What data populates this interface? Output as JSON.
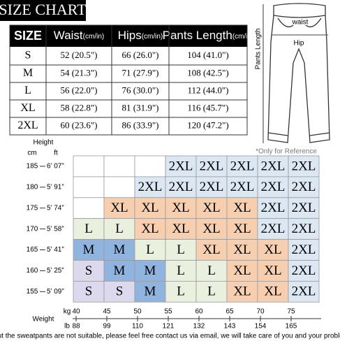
{
  "title": "SIZE CHART",
  "table": {
    "header": [
      {
        "label": "SIZE"
      },
      {
        "label": "Waist",
        "unit": "(cm/in)"
      },
      {
        "label": "Hips",
        "unit": "(cm/in)"
      },
      {
        "label": "Pants Length",
        "unit": "(cm/in)"
      }
    ],
    "rows": [
      [
        "S",
        "52 (20.5\")",
        "66 (26.0\")",
        "104 (41.0\")"
      ],
      [
        "M",
        "54 (21.3\")",
        "71 (27.9\")",
        "108 (42.5\")"
      ],
      [
        "L",
        "56 (22.0\")",
        "76 (30.0\")",
        "112 (44.0\")"
      ],
      [
        "XL",
        "58 (22.8\")",
        "81 (31.9\")",
        "116 (45.7\")"
      ],
      [
        "2XL",
        "60 (23.6\")",
        "86 (33.9\")",
        "120 (47.2\")"
      ]
    ]
  },
  "diagram": {
    "waist": "waist",
    "hip": "Hip",
    "length": "Pants Length",
    "note": "*Only for Reference"
  },
  "grid": {
    "height_title": "Height",
    "cm_unit": "cm",
    "ft_unit": "ft",
    "weight_title": "Weight",
    "kg_unit": "kg",
    "lb_unit": "lb",
    "heights": [
      {
        "cm": "185",
        "ft": "6’ 07”"
      },
      {
        "cm": "180",
        "ft": "5’ 91”"
      },
      {
        "cm": "175",
        "ft": "5’ 74”"
      },
      {
        "cm": "170",
        "ft": "5’ 58”"
      },
      {
        "cm": "165",
        "ft": "5’ 41”"
      },
      {
        "cm": "160",
        "ft": "5’ 25”"
      },
      {
        "cm": "155",
        "ft": "5’ 09”"
      }
    ],
    "weights": [
      {
        "kg": "40",
        "lb": "88"
      },
      {
        "kg": "45",
        "lb": "99"
      },
      {
        "kg": "50",
        "lb": "110"
      },
      {
        "kg": "55",
        "lb": "121"
      },
      {
        "kg": "60",
        "lb": "132"
      },
      {
        "kg": "65",
        "lb": "143"
      },
      {
        "kg": "70",
        "lb": "154"
      },
      {
        "kg": "75",
        "lb": "165"
      }
    ],
    "cells": [
      [
        null,
        null,
        null,
        "2XL",
        "2XL",
        "2XL",
        "2XL",
        "2XL"
      ],
      [
        null,
        null,
        "2XL",
        "2XL",
        "2XL",
        "2XL",
        "2XL",
        "2XL"
      ],
      [
        null,
        "XL",
        "XL",
        "XL",
        "XL",
        "XL",
        "2XL",
        "2XL"
      ],
      [
        "L",
        "L",
        "XL",
        "XL",
        "XL",
        "XL",
        "2XL",
        "2XL"
      ],
      [
        "M",
        "M",
        "L",
        "L",
        "XL",
        "XL",
        "XL",
        "2XL"
      ],
      [
        "S",
        "M",
        "M",
        "L",
        "L",
        "XL",
        "XL",
        "2XL"
      ],
      [
        "S",
        "S",
        "M",
        "L",
        "L",
        "XL",
        "XL",
        "2XL"
      ]
    ],
    "colors": {
      "S": "#dcd8ee",
      "M": "#8fb4e0",
      "L": "#e9f0dd",
      "XL": "#f8cfae",
      "2XL": "#dbe7f3"
    }
  },
  "footer": "If you find out the  sweatpants are not suitable, please feel free contact us via email, we will take care of you and your probleam quickly."
}
